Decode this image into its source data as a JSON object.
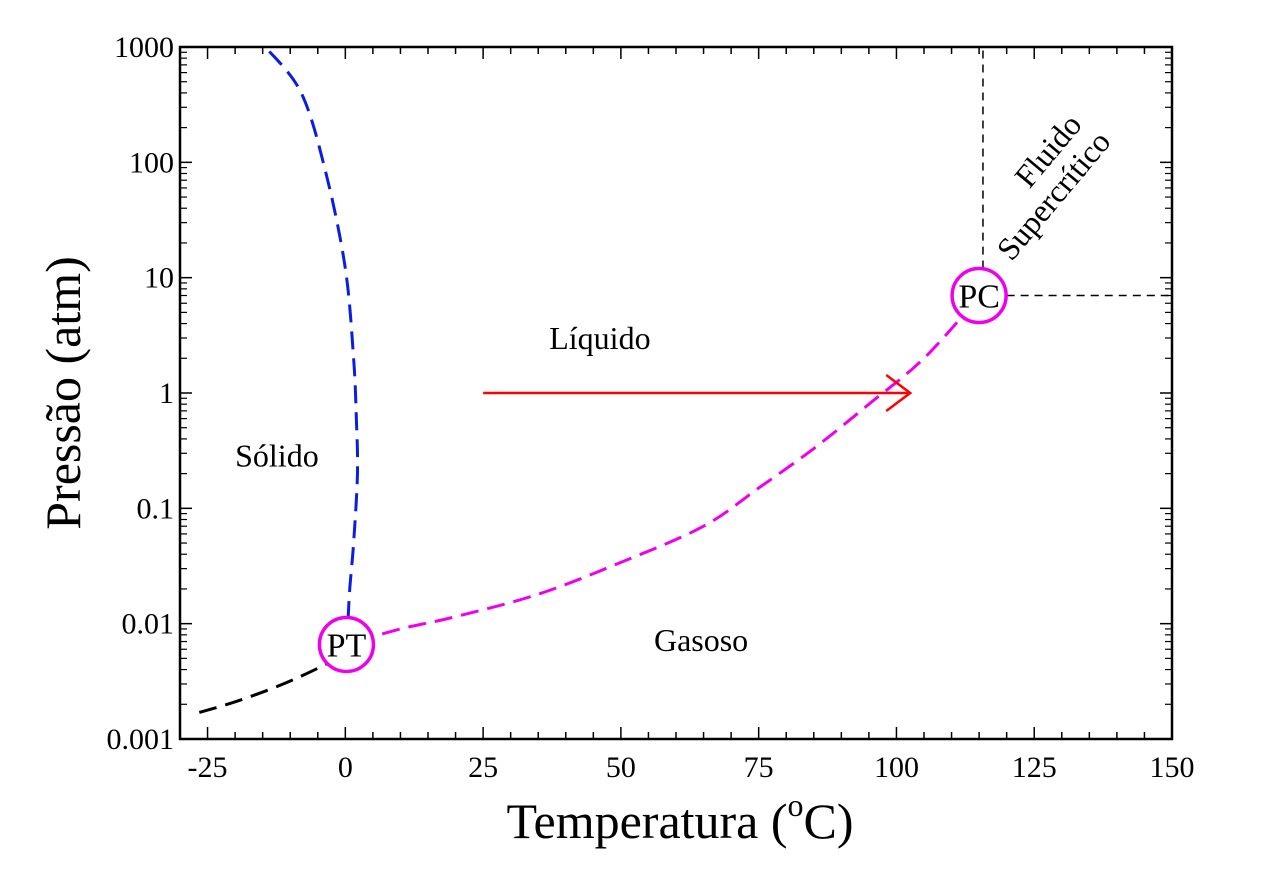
{
  "chart_data": {
    "type": "line",
    "xlabel": "Temperatura (",
    "xlabel_sup": "o",
    "xlabel_end": "C)",
    "ylabel": "Pressão (atm)",
    "xlim": [
      -30,
      150
    ],
    "ylim": [
      0.001,
      1000
    ],
    "y_scale": "log",
    "grid": false,
    "x_ticks": [
      -25,
      0,
      25,
      50,
      75,
      100,
      125,
      150
    ],
    "x_tick_labels": [
      "-25",
      "0",
      "25",
      "50",
      "75",
      "100",
      "125",
      "150"
    ],
    "y_ticks": [
      0.001,
      0.01,
      0.1,
      1,
      10,
      100,
      1000
    ],
    "y_tick_labels": [
      "0.001",
      "0.01",
      "0.1",
      "1",
      "10",
      "100",
      "1000"
    ],
    "series": [
      {
        "color": "#0a1ee0",
        "style": "dashed",
        "points": [
          [
            0.5,
            0.011
          ],
          [
            0.8,
            0.02
          ],
          [
            1.5,
            0.05
          ],
          [
            2.2,
            0.2
          ],
          [
            2.0,
            0.6
          ],
          [
            1.5,
            2
          ],
          [
            0,
            12
          ],
          [
            -3.5,
            80
          ],
          [
            -8,
            400
          ],
          [
            -14.5,
            1000
          ]
        ]
      },
      {
        "color": "#ee00ee",
        "style": "dashed",
        "points": [
          [
            2,
            0.007
          ],
          [
            10,
            0.009
          ],
          [
            20,
            0.0115
          ],
          [
            35,
            0.018
          ],
          [
            50,
            0.034
          ],
          [
            65,
            0.07
          ],
          [
            75,
            0.15
          ],
          [
            85,
            0.33
          ],
          [
            95,
            0.8
          ],
          [
            105,
            2
          ],
          [
            115,
            6.8
          ]
        ]
      },
      {
        "color": "#000000",
        "style": "dashed",
        "points": [
          [
            -26.5,
            0.0017
          ],
          [
            -20,
            0.0021
          ],
          [
            -12,
            0.0029
          ],
          [
            -5,
            0.0041
          ],
          [
            0,
            0.0055
          ]
        ]
      },
      {
        "color": "#000000",
        "style": "dashed-thin",
        "points": [
          [
            115.7,
            12
          ],
          [
            115.7,
            1000
          ]
        ]
      },
      {
        "color": "#000000",
        "style": "dashed-thin",
        "points": [
          [
            120,
            7
          ],
          [
            150,
            7
          ]
        ]
      }
    ],
    "arrow": {
      "color": "#ff0000",
      "x_start": 25,
      "x_end": 102.5,
      "y": 1
    },
    "markers": [
      {
        "label": "PT",
        "x": 0.2,
        "y": 0.0066,
        "color": "#ee00ee"
      },
      {
        "label": "PC",
        "x": 115,
        "y": 7,
        "color": "#ee00ee"
      }
    ],
    "annotations": [
      {
        "text": "Líquido",
        "x": 37,
        "y": 2.4
      },
      {
        "text": "Sólido",
        "x": -20,
        "y": 0.23
      },
      {
        "text": "Gasoso",
        "x": 56,
        "y": 0.0058
      },
      {
        "text": "Fluido",
        "x": 129,
        "y": 110,
        "rotate": -50
      },
      {
        "text": "Supercrítico",
        "x": 130,
        "y": 45,
        "rotate": -50
      }
    ]
  }
}
